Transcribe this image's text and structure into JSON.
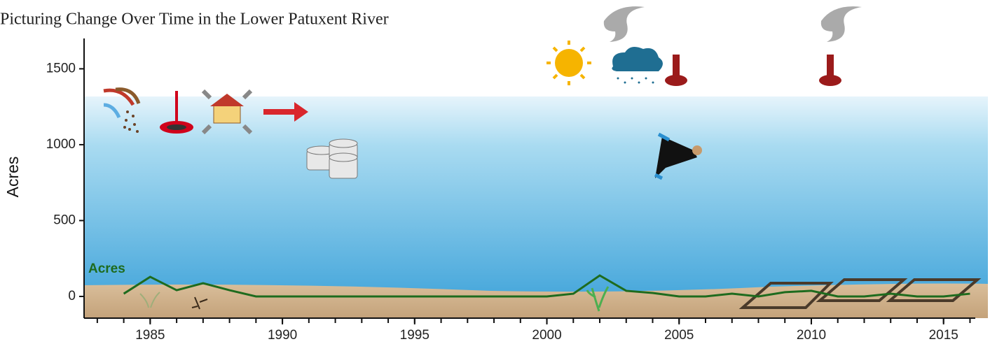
{
  "chart_data": {
    "type": "line",
    "title": "Picturing Change Over Time in the Lower Patuxent River",
    "y_label": "Acres",
    "x": [
      1984,
      1985,
      1986,
      1987,
      1988,
      1989,
      1990,
      1991,
      1992,
      1993,
      1994,
      1995,
      1996,
      1997,
      1998,
      1999,
      2000,
      2001,
      2002,
      2003,
      2004,
      2005,
      2006,
      2007,
      2008,
      2009,
      2010,
      2011,
      2012,
      2013,
      2014,
      2015,
      2016
    ],
    "series": [
      {
        "name": "Acres",
        "color": "#1e6b1e",
        "values": [
          18,
          129,
          41,
          87,
          41,
          0,
          0,
          0,
          0,
          0,
          0,
          0,
          0,
          0,
          0,
          0,
          0,
          18,
          138,
          37,
          23,
          0,
          0,
          18,
          0,
          28,
          37,
          0,
          0,
          18,
          0,
          0,
          18
        ]
      }
    ],
    "xlim": [
      1982.5,
      2016.2
    ],
    "xticks": [
      1985,
      1990,
      1995,
      2000,
      2005,
      2010,
      2015
    ],
    "ylim": [
      -143,
      1700
    ],
    "yticks": [
      0,
      500,
      1000,
      1500
    ]
  }
}
